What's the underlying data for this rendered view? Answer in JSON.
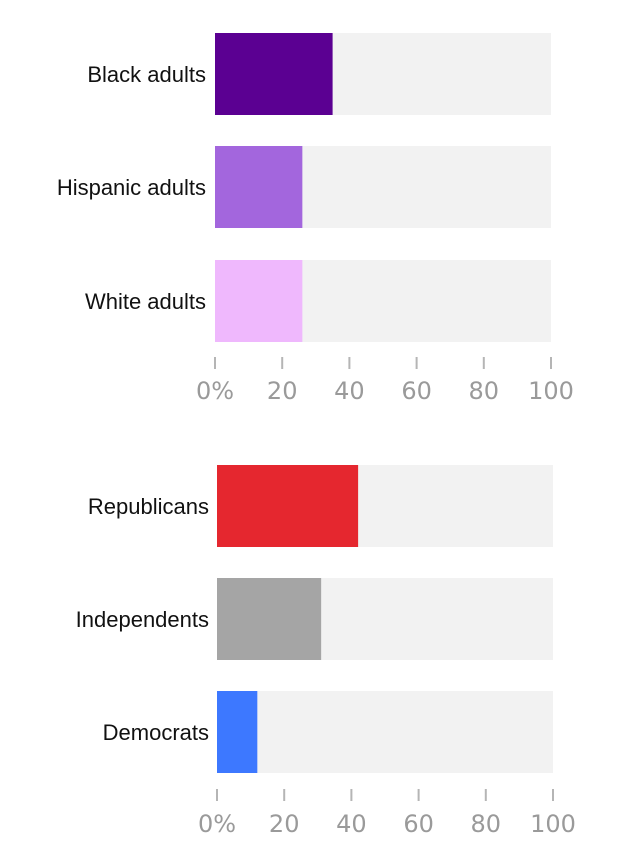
{
  "chart_data": [
    {
      "type": "bar",
      "orientation": "horizontal",
      "categories": [
        "Black adults",
        "Hispanic adults",
        "White adults"
      ],
      "values": [
        35,
        26,
        26
      ],
      "colors": [
        "#5b0092",
        "#a366dd",
        "#efb8fd"
      ],
      "background_bar_color": "#f2f2f2",
      "xlim": [
        0,
        100
      ],
      "x_ticks": [
        0,
        20,
        40,
        60,
        80,
        100
      ],
      "x_tick_labels": [
        "0%",
        "20",
        "40",
        "60",
        "80",
        "100"
      ],
      "title": "",
      "xlabel": "",
      "ylabel": "",
      "grid": false
    },
    {
      "type": "bar",
      "orientation": "horizontal",
      "categories": [
        "Republicans",
        "Independents",
        "Democrats"
      ],
      "values": [
        42,
        31,
        12
      ],
      "colors": [
        "#e5272f",
        "#a5a5a5",
        "#3d78ff"
      ],
      "background_bar_color": "#f2f2f2",
      "xlim": [
        0,
        100
      ],
      "x_ticks": [
        0,
        20,
        40,
        60,
        80,
        100
      ],
      "x_tick_labels": [
        "0%",
        "20",
        "40",
        "60",
        "80",
        "100"
      ],
      "title": "",
      "xlabel": "",
      "ylabel": "",
      "grid": false
    }
  ]
}
